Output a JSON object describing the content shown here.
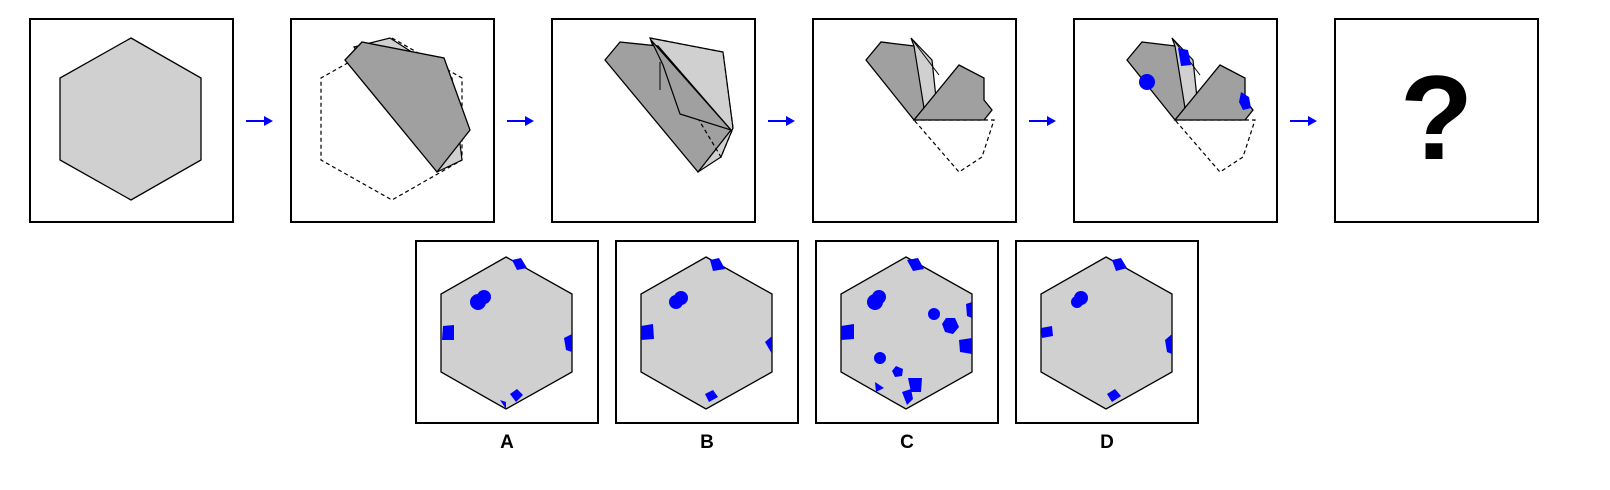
{
  "puzzle": {
    "question_mark": "?",
    "options": [
      "A",
      "B",
      "C",
      "D"
    ]
  },
  "colors": {
    "paper_light": "#d0d0d0",
    "paper_dark": "#a0a0a0",
    "hole_blue": "#0000ff",
    "arrow_blue": "#0000ff",
    "outline": "#000000"
  }
}
